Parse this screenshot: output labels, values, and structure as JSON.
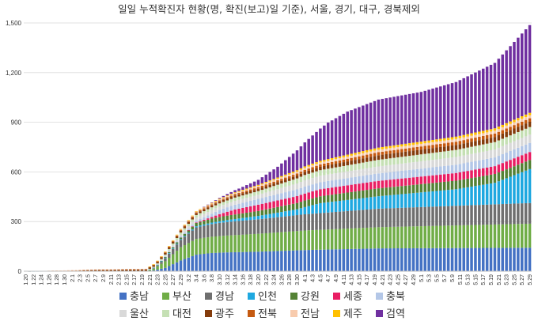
{
  "chart_data": {
    "type": "bar",
    "stacked": true,
    "title": "일일 누적확진자 현황(명, 확진(보고)일 기준), 서울, 경기, 대구, 경북제외",
    "xlabel": "",
    "ylabel": "",
    "ylim": [
      0,
      1500
    ],
    "yticks": [
      0,
      300,
      600,
      900,
      1200,
      1500
    ],
    "grid": true,
    "legend_position": "bottom",
    "x_tick_labels": [
      "1.20",
      "1.22",
      "1.24",
      "1.26",
      "1.28",
      "1.30",
      "2.1",
      "2.3",
      "2.5",
      "2.7",
      "2.9",
      "2.11",
      "2.13",
      "2.15",
      "2.17",
      "2.19",
      "2.21",
      "2.23",
      "2.25",
      "2.27",
      "2.29",
      "3.2",
      "3.4",
      "3.6",
      "3.8",
      "3.10",
      "3.12",
      "3.14",
      "3.16",
      "3.18",
      "3.20",
      "3.22",
      "3.24",
      "3.26",
      "3.28",
      "3.30",
      "4.1",
      "4.3",
      "4.5",
      "4.7",
      "4.9",
      "4.11",
      "4.13",
      "4.15",
      "4.17",
      "4.19",
      "4.21",
      "4.23",
      "4.25",
      "4.27",
      "4.29",
      "5.1",
      "5.3",
      "5.5",
      "5.7",
      "5.9",
      "5.11",
      "5.13",
      "5.15",
      "5.17",
      "5.19",
      "5.21",
      "5.23",
      "5.25",
      "5.27",
      "5.29"
    ],
    "x_start": "1.20",
    "x_end": "5.29",
    "series": [
      {
        "name": "충남",
        "color": "#4472C4",
        "checkpoints": [
          [
            "1.20",
            0
          ],
          [
            "2.20",
            0
          ],
          [
            "2.22",
            5
          ],
          [
            "2.25",
            20
          ],
          [
            "2.29",
            65
          ],
          [
            "3.4",
            100
          ],
          [
            "3.8",
            110
          ],
          [
            "3.12",
            114
          ],
          [
            "3.20",
            118
          ],
          [
            "4.1",
            128
          ],
          [
            "4.20",
            138
          ],
          [
            "5.29",
            142
          ]
        ]
      },
      {
        "name": "부산",
        "color": "#70AD47",
        "checkpoints": [
          [
            "1.20",
            0
          ],
          [
            "2.20",
            0
          ],
          [
            "2.22",
            10
          ],
          [
            "2.25",
            40
          ],
          [
            "2.29",
            80
          ],
          [
            "3.4",
            95
          ],
          [
            "3.10",
            100
          ],
          [
            "3.20",
            108
          ],
          [
            "4.1",
            118
          ],
          [
            "4.20",
            128
          ],
          [
            "5.29",
            145
          ]
        ]
      },
      {
        "name": "경남",
        "color": "#6F6F6F",
        "checkpoints": [
          [
            "1.20",
            0
          ],
          [
            "2.20",
            0
          ],
          [
            "2.23",
            5
          ],
          [
            "2.26",
            25
          ],
          [
            "2.29",
            45
          ],
          [
            "3.4",
            70
          ],
          [
            "3.10",
            80
          ],
          [
            "3.20",
            88
          ],
          [
            "4.1",
            98
          ],
          [
            "4.20",
            112
          ],
          [
            "5.29",
            125
          ]
        ]
      },
      {
        "name": "인천",
        "color": "#1FA8E0",
        "checkpoints": [
          [
            "1.20",
            0
          ],
          [
            "1.30",
            1
          ],
          [
            "2.20",
            2
          ],
          [
            "2.29",
            4
          ],
          [
            "3.10",
            10
          ],
          [
            "3.20",
            20
          ],
          [
            "3.30",
            35
          ],
          [
            "4.5",
            60
          ],
          [
            "4.20",
            75
          ],
          [
            "5.10",
            100
          ],
          [
            "5.20",
            130
          ],
          [
            "5.29",
            205
          ]
        ]
      },
      {
        "name": "강원",
        "color": "#548235",
        "checkpoints": [
          [
            "1.20",
            0
          ],
          [
            "2.20",
            0
          ],
          [
            "2.24",
            3
          ],
          [
            "2.29",
            10
          ],
          [
            "3.4",
            20
          ],
          [
            "3.10",
            26
          ],
          [
            "3.20",
            30
          ],
          [
            "4.1",
            40
          ],
          [
            "4.20",
            48
          ],
          [
            "5.29",
            55
          ]
        ]
      },
      {
        "name": "세종",
        "color": "#E91E63",
        "checkpoints": [
          [
            "1.20",
            0
          ],
          [
            "3.1",
            0
          ],
          [
            "3.4",
            3
          ],
          [
            "3.8",
            10
          ],
          [
            "3.14",
            30
          ],
          [
            "3.20",
            38
          ],
          [
            "4.1",
            42
          ],
          [
            "4.20",
            45
          ],
          [
            "5.29",
            48
          ]
        ]
      },
      {
        "name": "충북",
        "color": "#B4C7E7",
        "checkpoints": [
          [
            "1.20",
            0
          ],
          [
            "2.20",
            0
          ],
          [
            "2.23",
            2
          ],
          [
            "2.29",
            6
          ],
          [
            "3.4",
            10
          ],
          [
            "3.10",
            25
          ],
          [
            "3.20",
            35
          ],
          [
            "4.1",
            42
          ],
          [
            "4.20",
            45
          ],
          [
            "5.29",
            55
          ]
        ]
      },
      {
        "name": "울산",
        "color": "#D9D9D9",
        "checkpoints": [
          [
            "1.20",
            0
          ],
          [
            "2.20",
            0
          ],
          [
            "2.23",
            2
          ],
          [
            "2.29",
            12
          ],
          [
            "3.4",
            20
          ],
          [
            "3.10",
            22
          ],
          [
            "3.20",
            25
          ],
          [
            "4.1",
            38
          ],
          [
            "4.20",
            42
          ],
          [
            "5.29",
            50
          ]
        ]
      },
      {
        "name": "대전",
        "color": "#C5E0B4",
        "checkpoints": [
          [
            "1.20",
            0
          ],
          [
            "2.20",
            0
          ],
          [
            "2.22",
            2
          ],
          [
            "2.29",
            12
          ],
          [
            "3.4",
            15
          ],
          [
            "3.10",
            18
          ],
          [
            "3.20",
            22
          ],
          [
            "4.1",
            32
          ],
          [
            "4.20",
            40
          ],
          [
            "5.29",
            46
          ]
        ]
      },
      {
        "name": "광주",
        "color": "#843C0C",
        "checkpoints": [
          [
            "1.20",
            0
          ],
          [
            "2.2",
            2
          ],
          [
            "2.5",
            5
          ],
          [
            "2.20",
            9
          ],
          [
            "2.29",
            10
          ],
          [
            "3.10",
            12
          ],
          [
            "3.20",
            14
          ],
          [
            "4.1",
            18
          ],
          [
            "4.20",
            28
          ],
          [
            "5.29",
            32
          ]
        ]
      },
      {
        "name": "전북",
        "color": "#C55A11",
        "checkpoints": [
          [
            "1.20",
            0
          ],
          [
            "1.30",
            2
          ],
          [
            "2.3",
            3
          ],
          [
            "2.20",
            3
          ],
          [
            "2.29",
            6
          ],
          [
            "3.10",
            7
          ],
          [
            "3.20",
            10
          ],
          [
            "4.1",
            13
          ],
          [
            "4.20",
            18
          ],
          [
            "5.29",
            21
          ]
        ]
      },
      {
        "name": "전남",
        "color": "#F8CBAD",
        "checkpoints": [
          [
            "1.20",
            0
          ],
          [
            "2.4",
            1
          ],
          [
            "2.20",
            1
          ],
          [
            "2.29",
            3
          ],
          [
            "3.10",
            5
          ],
          [
            "3.20",
            8
          ],
          [
            "4.1",
            12
          ],
          [
            "4.20",
            15
          ],
          [
            "5.29",
            18
          ]
        ]
      },
      {
        "name": "제주",
        "color": "#FFC000",
        "checkpoints": [
          [
            "1.20",
            0
          ],
          [
            "2.20",
            0
          ],
          [
            "2.22",
            1
          ],
          [
            "2.29",
            2
          ],
          [
            "3.10",
            4
          ],
          [
            "3.20",
            6
          ],
          [
            "4.1",
            9
          ],
          [
            "4.20",
            13
          ],
          [
            "5.29",
            15
          ]
        ]
      },
      {
        "name": "검역",
        "color": "#7030A0",
        "checkpoints": [
          [
            "1.20",
            0
          ],
          [
            "3.5",
            0
          ],
          [
            "3.10",
            5
          ],
          [
            "3.15",
            15
          ],
          [
            "3.20",
            30
          ],
          [
            "3.25",
            65
          ],
          [
            "3.30",
            120
          ],
          [
            "4.3",
            170
          ],
          [
            "4.7",
            220
          ],
          [
            "4.12",
            260
          ],
          [
            "4.20",
            290
          ],
          [
            "5.1",
            300
          ],
          [
            "5.10",
            330
          ],
          [
            "5.20",
            395
          ],
          [
            "5.29",
            530
          ]
        ]
      }
    ]
  }
}
